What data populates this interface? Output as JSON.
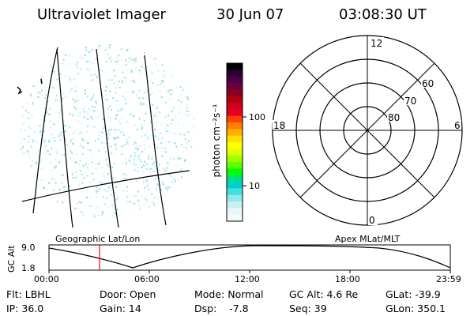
{
  "header": {
    "title": "Ultraviolet Imager",
    "date": "30 Jun 07",
    "time": "03:08:30 UT"
  },
  "colorbar": {
    "ticks": [
      "100",
      "10"
    ],
    "unit_label": "photon cm⁻²s⁻¹",
    "colors": [
      "#000000",
      "#2a0030",
      "#4a0040",
      "#6a0040",
      "#8a0020",
      "#b00010",
      "#d00020",
      "#e80020",
      "#ff4000",
      "#ff8000",
      "#ffb000",
      "#ffe000",
      "#ffff00",
      "#e0ff00",
      "#a0ff00",
      "#60ff00",
      "#00ff00",
      "#00e080",
      "#00d0d0",
      "#40e0e0",
      "#90e8e8",
      "#c8f0f0",
      "#e8f8f8",
      "#f4fbfb"
    ]
  },
  "polar": {
    "labels": {
      "top": "12",
      "bottom": "0",
      "left": "18",
      "right": "6",
      "lat60": "60",
      "lat70": "70",
      "lat80": "80"
    }
  },
  "timeline": {
    "left_title": "Geographic Lat/Lon",
    "right_title": "Apex MLat/MLT",
    "y_axis_label": "GC Alt",
    "y_ticks": [
      "9.0",
      "1.8"
    ],
    "x_ticks": [
      "00:00",
      "06:00",
      "12:00",
      "18:00",
      "23:59"
    ],
    "marker_color": "#ff0000"
  },
  "info": {
    "flt": "Flt: LBHL",
    "door": "Door: Open",
    "mode": "Mode: Normal",
    "gc_alt": "GC Alt: 4.6 Re",
    "glat": "GLat: -39.9",
    "ip": "IP: 36.0",
    "gain": "Gain: 14",
    "dsp": "Dsp:    -7.8",
    "seq": "Seq: 39",
    "glon": "GLon: 350.1"
  }
}
